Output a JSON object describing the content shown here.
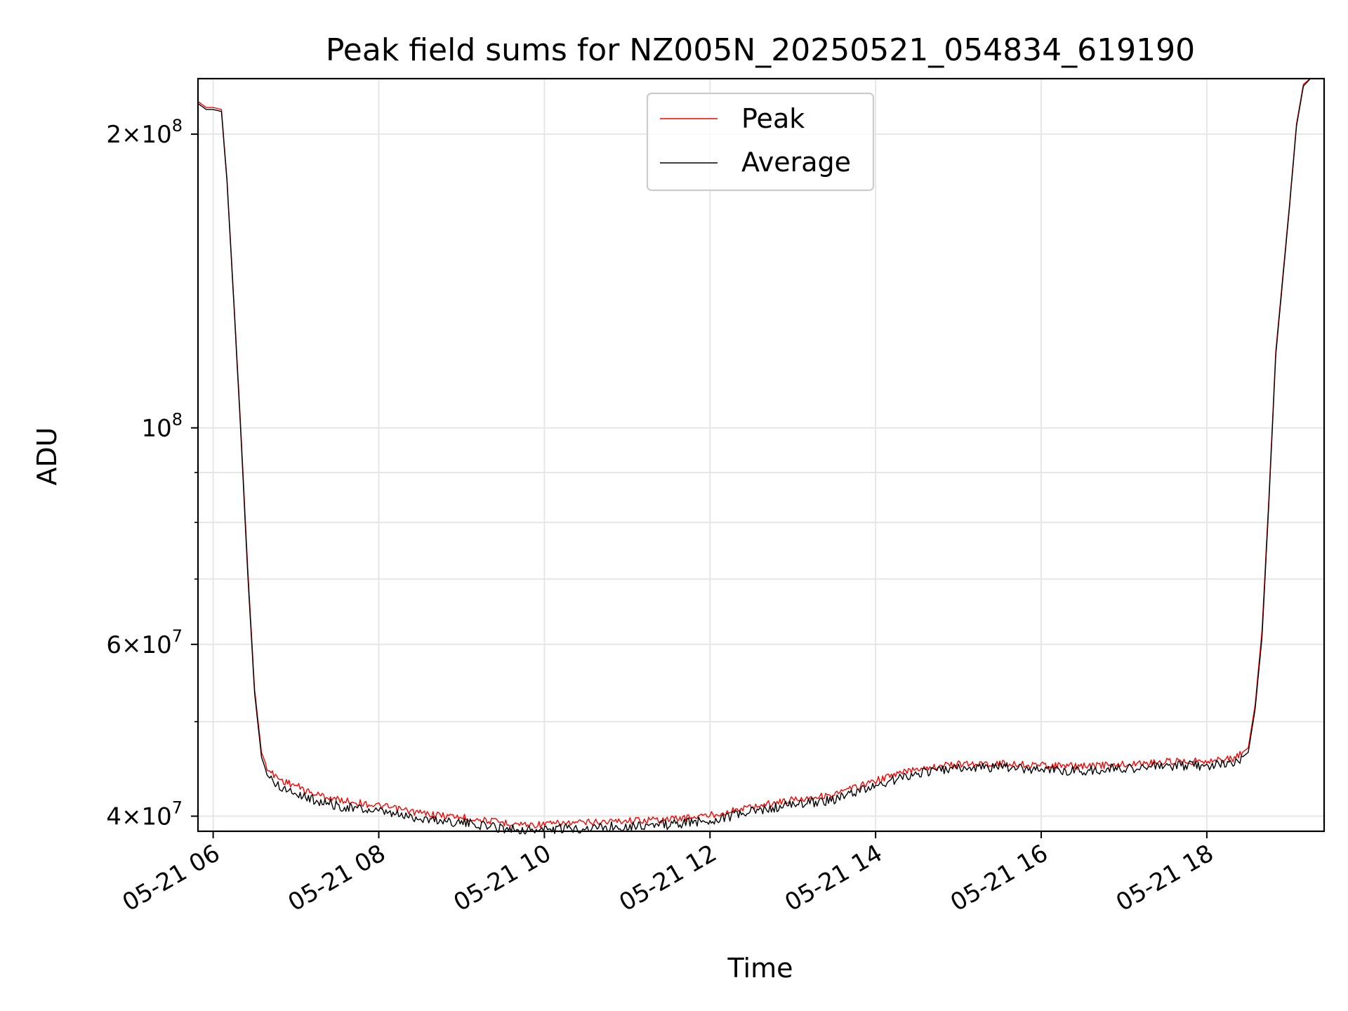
{
  "chart_data": {
    "type": "line",
    "title": "Peak field sums for NZ005N_20250521_054834_619190",
    "xlabel": "Time",
    "ylabel": "ADU",
    "yscale": "log",
    "xlim": [
      "2025-05-21 05:49",
      "2025-05-21 19:25"
    ],
    "ylim": [
      38600000,
      228000000
    ],
    "grid": true,
    "legend_position": "top-center",
    "x_ticks": [
      {
        "value": "2025-05-21 06:00",
        "label": "05-21 06"
      },
      {
        "value": "2025-05-21 08:00",
        "label": "05-21 08"
      },
      {
        "value": "2025-05-21 10:00",
        "label": "05-21 10"
      },
      {
        "value": "2025-05-21 12:00",
        "label": "05-21 12"
      },
      {
        "value": "2025-05-21 14:00",
        "label": "05-21 14"
      },
      {
        "value": "2025-05-21 16:00",
        "label": "05-21 16"
      },
      {
        "value": "2025-05-21 18:00",
        "label": "05-21 18"
      }
    ],
    "y_ticks_major": [
      {
        "value": 40000000,
        "base": "4×10",
        "exp": "7"
      },
      {
        "value": 60000000,
        "base": "6×10",
        "exp": "7"
      },
      {
        "value": 100000000,
        "base": "10",
        "exp": "8"
      },
      {
        "value": 200000000,
        "base": "2×10",
        "exp": "8"
      }
    ],
    "y_ticks_minor": [
      50000000,
      70000000,
      80000000,
      90000000
    ],
    "series": [
      {
        "name": "Peak",
        "color": "#ff0000",
        "x": [
          "2025-05-21 05:49",
          "2025-05-21 05:55",
          "2025-05-21 06:00",
          "2025-05-21 06:06",
          "2025-05-21 06:10",
          "2025-05-21 06:15",
          "2025-05-21 06:20",
          "2025-05-21 06:25",
          "2025-05-21 06:30",
          "2025-05-21 06:35",
          "2025-05-21 06:40",
          "2025-05-21 06:50",
          "2025-05-21 07:00",
          "2025-05-21 07:10",
          "2025-05-21 07:30",
          "2025-05-21 08:00",
          "2025-05-21 08:30",
          "2025-05-21 09:00",
          "2025-05-21 09:30",
          "2025-05-21 09:50",
          "2025-05-21 10:30",
          "2025-05-21 11:00",
          "2025-05-21 11:30",
          "2025-05-21 12:00",
          "2025-05-21 12:30",
          "2025-05-21 13:00",
          "2025-05-21 13:30",
          "2025-05-21 14:00",
          "2025-05-21 14:30",
          "2025-05-21 15:00",
          "2025-05-21 15:30",
          "2025-05-21 16:00",
          "2025-05-21 16:30",
          "2025-05-21 17:00",
          "2025-05-21 17:30",
          "2025-05-21 18:00",
          "2025-05-21 18:20",
          "2025-05-21 18:30",
          "2025-05-21 18:35",
          "2025-05-21 18:40",
          "2025-05-21 18:45",
          "2025-05-21 18:50",
          "2025-05-21 19:00",
          "2025-05-21 19:05",
          "2025-05-21 19:10",
          "2025-05-21 19:15",
          "2025-05-21 19:25"
        ],
        "values": [
          216000000,
          213000000,
          213000000,
          212000000,
          180000000,
          135000000,
          100000000,
          72000000,
          54000000,
          46500000,
          44500000,
          43500000,
          43000000,
          42300000,
          41600000,
          41000000,
          40300000,
          39900000,
          39400000,
          39200000,
          39400000,
          39600000,
          39700000,
          40100000,
          40900000,
          41600000,
          42100000,
          43500000,
          44800000,
          45200000,
          45300000,
          45100000,
          45000000,
          45200000,
          45500000,
          45600000,
          45800000,
          47000000,
          52000000,
          62000000,
          85000000,
          120000000,
          170000000,
          205000000,
          225000000,
          228000000,
          228000000
        ]
      },
      {
        "name": "Average",
        "color": "#000000",
        "x": [
          "2025-05-21 05:49",
          "2025-05-21 05:55",
          "2025-05-21 06:00",
          "2025-05-21 06:06",
          "2025-05-21 06:10",
          "2025-05-21 06:15",
          "2025-05-21 06:20",
          "2025-05-21 06:25",
          "2025-05-21 06:30",
          "2025-05-21 06:35",
          "2025-05-21 06:40",
          "2025-05-21 06:50",
          "2025-05-21 07:00",
          "2025-05-21 07:10",
          "2025-05-21 07:30",
          "2025-05-21 08:00",
          "2025-05-21 08:30",
          "2025-05-21 09:00",
          "2025-05-21 09:30",
          "2025-05-21 09:50",
          "2025-05-21 10:30",
          "2025-05-21 11:00",
          "2025-05-21 11:30",
          "2025-05-21 12:00",
          "2025-05-21 12:30",
          "2025-05-21 13:00",
          "2025-05-21 13:30",
          "2025-05-21 14:00",
          "2025-05-21 14:30",
          "2025-05-21 15:00",
          "2025-05-21 15:30",
          "2025-05-21 16:00",
          "2025-05-21 16:30",
          "2025-05-21 17:00",
          "2025-05-21 17:30",
          "2025-05-21 18:00",
          "2025-05-21 18:20",
          "2025-05-21 18:30",
          "2025-05-21 18:35",
          "2025-05-21 18:40",
          "2025-05-21 18:45",
          "2025-05-21 18:50",
          "2025-05-21 19:00",
          "2025-05-21 19:05",
          "2025-05-21 19:10",
          "2025-05-21 19:15",
          "2025-05-21 19:25"
        ],
        "values": [
          215000000,
          212000000,
          212000000,
          211000000,
          179000000,
          134000000,
          99000000,
          71000000,
          53500000,
          46000000,
          43800000,
          42800000,
          42300000,
          41700000,
          41000000,
          40400000,
          39800000,
          39400000,
          38900000,
          38700000,
          38900000,
          39100000,
          39200000,
          39600000,
          40400000,
          41100000,
          41600000,
          43000000,
          44300000,
          44800000,
          44900000,
          44700000,
          44500000,
          44800000,
          45000000,
          45100000,
          45300000,
          46500000,
          51500000,
          61000000,
          84000000,
          119000000,
          169000000,
          204000000,
          224000000,
          228000000,
          228000000
        ]
      }
    ]
  }
}
